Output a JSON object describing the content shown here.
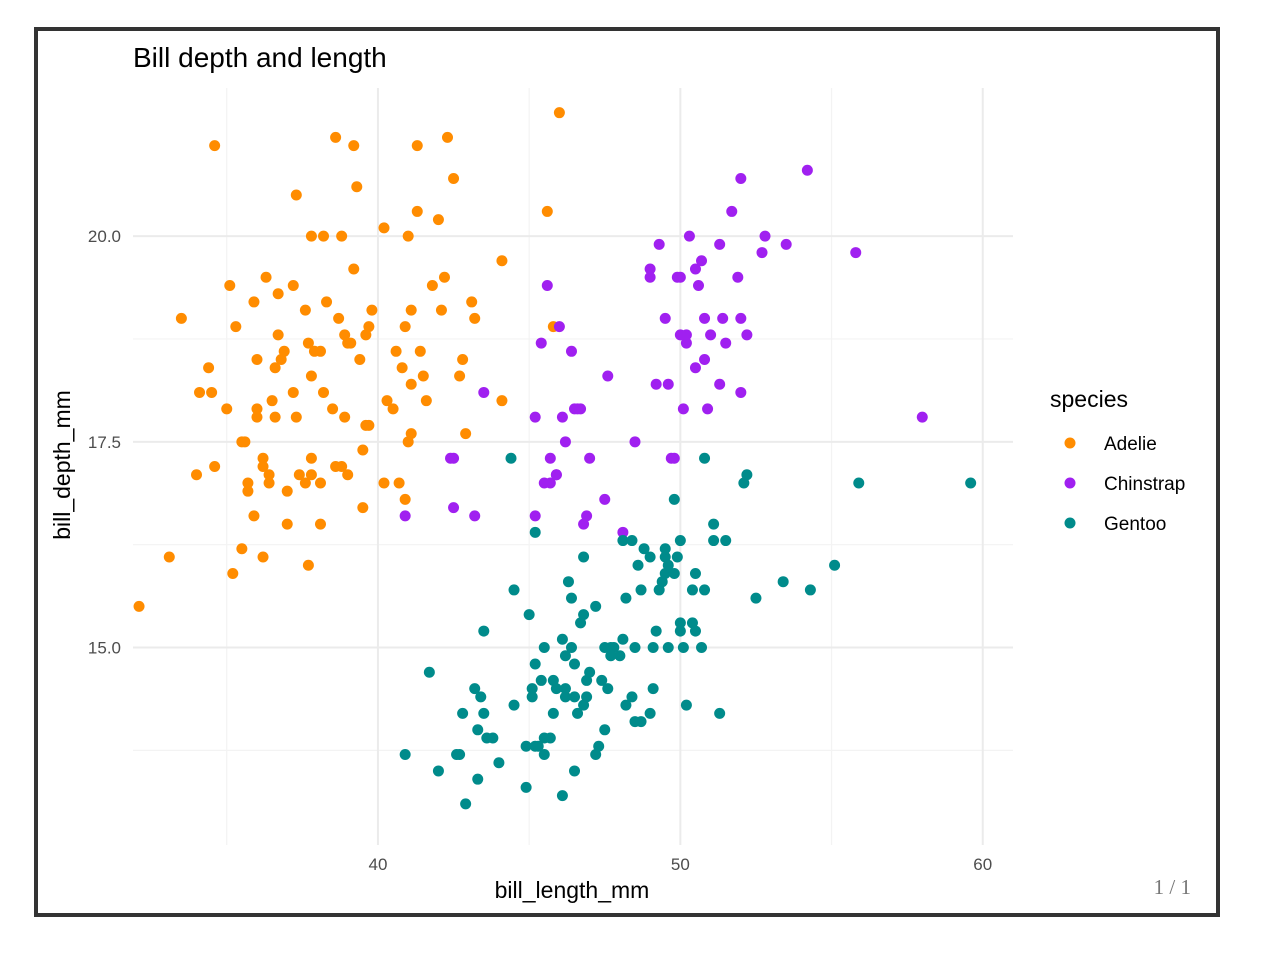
{
  "page_indicator": "1 / 1",
  "chart_data": {
    "type": "scatter",
    "title": "Bill depth and length",
    "xlabel": "bill_length_mm",
    "ylabel": "bill_depth_mm",
    "xlim": [
      31.9,
      61.0
    ],
    "ylim": [
      12.6,
      21.8
    ],
    "xticks": [
      40,
      50,
      60
    ],
    "xtick_labels": [
      "40",
      "50",
      "60"
    ],
    "yticks": [
      15.0,
      17.5,
      20.0
    ],
    "ytick_labels": [
      "15.0",
      "17.5",
      "20.0"
    ],
    "grid": true,
    "legend": {
      "title": "species",
      "position": "right"
    },
    "series": [
      {
        "name": "Adelie",
        "color": "#ff8c00",
        "points": [
          [
            32.1,
            15.5
          ],
          [
            33.1,
            16.1
          ],
          [
            33.5,
            19.0
          ],
          [
            34.0,
            17.1
          ],
          [
            34.1,
            18.1
          ],
          [
            34.4,
            18.4
          ],
          [
            34.5,
            18.1
          ],
          [
            34.6,
            21.1
          ],
          [
            34.6,
            17.2
          ],
          [
            35.0,
            17.9
          ],
          [
            35.1,
            19.4
          ],
          [
            35.2,
            15.9
          ],
          [
            35.3,
            18.9
          ],
          [
            35.5,
            16.2
          ],
          [
            35.5,
            17.5
          ],
          [
            35.6,
            17.5
          ],
          [
            35.7,
            16.9
          ],
          [
            35.7,
            17.0
          ],
          [
            35.9,
            19.2
          ],
          [
            35.9,
            16.6
          ],
          [
            36.0,
            17.9
          ],
          [
            36.0,
            17.8
          ],
          [
            36.0,
            18.5
          ],
          [
            36.2,
            16.1
          ],
          [
            36.2,
            17.3
          ],
          [
            36.2,
            17.2
          ],
          [
            36.3,
            19.5
          ],
          [
            36.4,
            17.0
          ],
          [
            36.4,
            17.1
          ],
          [
            36.5,
            18.0
          ],
          [
            36.6,
            17.8
          ],
          [
            36.6,
            18.4
          ],
          [
            36.7,
            19.3
          ],
          [
            36.7,
            18.8
          ],
          [
            36.8,
            18.5
          ],
          [
            36.9,
            18.6
          ],
          [
            37.0,
            16.5
          ],
          [
            37.0,
            16.9
          ],
          [
            37.2,
            18.1
          ],
          [
            37.2,
            19.4
          ],
          [
            37.3,
            17.8
          ],
          [
            37.3,
            20.5
          ],
          [
            37.6,
            17.0
          ],
          [
            37.6,
            19.1
          ],
          [
            37.7,
            18.7
          ],
          [
            37.8,
            17.1
          ],
          [
            37.8,
            17.3
          ],
          [
            37.8,
            18.3
          ],
          [
            37.8,
            20.0
          ],
          [
            37.7,
            16.0
          ],
          [
            37.9,
            18.6
          ],
          [
            38.1,
            18.6
          ],
          [
            38.1,
            17.0
          ],
          [
            38.1,
            16.5
          ],
          [
            38.2,
            18.1
          ],
          [
            38.2,
            20.0
          ],
          [
            38.5,
            17.9
          ],
          [
            38.6,
            21.2
          ],
          [
            38.6,
            17.2
          ],
          [
            38.7,
            19.0
          ],
          [
            38.8,
            17.2
          ],
          [
            38.8,
            20.0
          ],
          [
            38.9,
            17.8
          ],
          [
            38.9,
            18.8
          ],
          [
            39.0,
            17.1
          ],
          [
            39.0,
            18.7
          ],
          [
            39.1,
            18.7
          ],
          [
            39.2,
            19.6
          ],
          [
            39.2,
            21.1
          ],
          [
            39.3,
            20.6
          ],
          [
            39.5,
            17.4
          ],
          [
            39.5,
            16.7
          ],
          [
            39.6,
            17.7
          ],
          [
            39.6,
            18.8
          ],
          [
            39.7,
            17.7
          ],
          [
            39.7,
            18.9
          ],
          [
            39.8,
            19.1
          ],
          [
            40.2,
            20.1
          ],
          [
            40.2,
            17.0
          ],
          [
            40.3,
            18.0
          ],
          [
            40.5,
            17.9
          ],
          [
            40.6,
            18.6
          ],
          [
            40.8,
            18.4
          ],
          [
            40.9,
            18.9
          ],
          [
            40.9,
            16.8
          ],
          [
            41.0,
            20.0
          ],
          [
            41.1,
            17.6
          ],
          [
            41.1,
            18.2
          ],
          [
            41.1,
            19.1
          ],
          [
            41.3,
            20.3
          ],
          [
            41.3,
            21.1
          ],
          [
            41.4,
            18.6
          ],
          [
            41.5,
            18.3
          ],
          [
            41.6,
            18.0
          ],
          [
            41.8,
            19.4
          ],
          [
            42.0,
            20.2
          ],
          [
            42.1,
            19.1
          ],
          [
            42.2,
            19.5
          ],
          [
            42.3,
            21.2
          ],
          [
            42.5,
            20.7
          ],
          [
            42.7,
            18.3
          ],
          [
            42.8,
            18.5
          ],
          [
            42.9,
            17.6
          ],
          [
            43.2,
            19.0
          ],
          [
            43.1,
            19.2
          ],
          [
            44.1,
            19.7
          ],
          [
            44.1,
            18.0
          ],
          [
            45.6,
            20.3
          ],
          [
            45.8,
            18.9
          ],
          [
            46.0,
            21.5
          ],
          [
            40.7,
            17.0
          ],
          [
            41.0,
            17.5
          ],
          [
            38.3,
            19.2
          ],
          [
            39.4,
            18.5
          ],
          [
            37.4,
            17.1
          ]
        ]
      },
      {
        "name": "Chinstrap",
        "color": "#a020f0",
        "points": [
          [
            40.9,
            16.6
          ],
          [
            42.4,
            17.3
          ],
          [
            42.5,
            16.7
          ],
          [
            42.5,
            17.3
          ],
          [
            43.2,
            16.6
          ],
          [
            43.5,
            18.1
          ],
          [
            45.2,
            17.8
          ],
          [
            45.2,
            16.6
          ],
          [
            45.4,
            18.7
          ],
          [
            45.5,
            17.0
          ],
          [
            45.6,
            19.4
          ],
          [
            45.7,
            17.3
          ],
          [
            45.7,
            17.0
          ],
          [
            45.9,
            17.1
          ],
          [
            46.0,
            18.9
          ],
          [
            46.1,
            17.8
          ],
          [
            46.4,
            18.6
          ],
          [
            46.5,
            17.9
          ],
          [
            46.6,
            17.9
          ],
          [
            46.7,
            17.9
          ],
          [
            46.8,
            16.5
          ],
          [
            46.9,
            16.6
          ],
          [
            47.0,
            17.3
          ],
          [
            47.5,
            16.8
          ],
          [
            47.6,
            18.3
          ],
          [
            48.1,
            16.4
          ],
          [
            48.5,
            17.5
          ],
          [
            49.0,
            19.6
          ],
          [
            49.0,
            19.5
          ],
          [
            49.2,
            18.2
          ],
          [
            49.3,
            19.9
          ],
          [
            49.5,
            19.0
          ],
          [
            49.6,
            18.2
          ],
          [
            49.7,
            17.3
          ],
          [
            49.8,
            17.3
          ],
          [
            49.9,
            19.5
          ],
          [
            50.0,
            19.5
          ],
          [
            50.1,
            17.9
          ],
          [
            50.2,
            18.7
          ],
          [
            50.3,
            20.0
          ],
          [
            50.5,
            18.4
          ],
          [
            50.5,
            19.6
          ],
          [
            50.6,
            19.4
          ],
          [
            50.7,
            19.7
          ],
          [
            50.8,
            18.5
          ],
          [
            50.8,
            19.0
          ],
          [
            50.9,
            17.9
          ],
          [
            51.0,
            18.8
          ],
          [
            51.3,
            18.2
          ],
          [
            51.3,
            19.9
          ],
          [
            51.4,
            19.0
          ],
          [
            51.5,
            18.7
          ],
          [
            51.7,
            20.3
          ],
          [
            51.9,
            19.5
          ],
          [
            52.0,
            18.1
          ],
          [
            52.0,
            19.0
          ],
          [
            52.0,
            20.7
          ],
          [
            52.2,
            18.8
          ],
          [
            52.7,
            19.8
          ],
          [
            52.8,
            20.0
          ],
          [
            53.5,
            19.9
          ],
          [
            54.2,
            20.8
          ],
          [
            55.8,
            19.8
          ],
          [
            58.0,
            17.8
          ],
          [
            50.2,
            18.8
          ],
          [
            50.0,
            18.8
          ],
          [
            46.2,
            17.5
          ],
          [
            45.9,
            17.1
          ]
        ]
      },
      {
        "name": "Gentoo",
        "color": "#008b8b",
        "points": [
          [
            40.9,
            13.7
          ],
          [
            41.7,
            14.7
          ],
          [
            42.0,
            13.5
          ],
          [
            42.6,
            13.7
          ],
          [
            42.7,
            13.7
          ],
          [
            42.8,
            14.2
          ],
          [
            42.9,
            13.1
          ],
          [
            43.2,
            14.5
          ],
          [
            43.3,
            13.4
          ],
          [
            43.3,
            14.0
          ],
          [
            43.4,
            14.4
          ],
          [
            43.5,
            14.2
          ],
          [
            43.5,
            15.2
          ],
          [
            43.6,
            13.9
          ],
          [
            43.8,
            13.9
          ],
          [
            44.0,
            13.6
          ],
          [
            44.4,
            17.3
          ],
          [
            44.5,
            14.3
          ],
          [
            44.5,
            15.7
          ],
          [
            44.9,
            13.3
          ],
          [
            44.9,
            13.8
          ],
          [
            45.0,
            15.4
          ],
          [
            45.1,
            14.5
          ],
          [
            45.1,
            14.4
          ],
          [
            45.2,
            14.8
          ],
          [
            45.2,
            13.8
          ],
          [
            45.2,
            16.4
          ],
          [
            45.3,
            13.8
          ],
          [
            45.4,
            14.6
          ],
          [
            45.5,
            13.7
          ],
          [
            45.5,
            15.0
          ],
          [
            45.5,
            13.9
          ],
          [
            45.7,
            13.9
          ],
          [
            45.8,
            14.6
          ],
          [
            45.8,
            14.2
          ],
          [
            46.1,
            13.2
          ],
          [
            46.1,
            15.1
          ],
          [
            46.2,
            14.4
          ],
          [
            46.2,
            14.5
          ],
          [
            46.2,
            14.9
          ],
          [
            46.3,
            15.8
          ],
          [
            46.4,
            15.0
          ],
          [
            46.4,
            15.6
          ],
          [
            46.5,
            13.5
          ],
          [
            46.5,
            14.4
          ],
          [
            46.5,
            14.8
          ],
          [
            46.6,
            14.2
          ],
          [
            46.7,
            15.3
          ],
          [
            46.8,
            14.3
          ],
          [
            46.8,
            15.4
          ],
          [
            46.8,
            16.1
          ],
          [
            46.9,
            14.6
          ],
          [
            47.2,
            13.7
          ],
          [
            47.2,
            15.5
          ],
          [
            47.3,
            13.8
          ],
          [
            47.4,
            14.6
          ],
          [
            47.5,
            14.0
          ],
          [
            47.5,
            15.0
          ],
          [
            47.6,
            14.5
          ],
          [
            47.7,
            15.0
          ],
          [
            47.8,
            15.0
          ],
          [
            48.1,
            15.1
          ],
          [
            48.1,
            16.3
          ],
          [
            48.2,
            14.3
          ],
          [
            48.2,
            15.6
          ],
          [
            48.4,
            14.4
          ],
          [
            48.4,
            16.3
          ],
          [
            48.5,
            14.1
          ],
          [
            48.5,
            15.0
          ],
          [
            48.6,
            16.0
          ],
          [
            48.7,
            14.1
          ],
          [
            48.7,
            15.7
          ],
          [
            48.8,
            16.2
          ],
          [
            49.0,
            16.1
          ],
          [
            49.1,
            14.5
          ],
          [
            49.1,
            15.0
          ],
          [
            49.2,
            15.2
          ],
          [
            49.3,
            15.7
          ],
          [
            49.4,
            15.8
          ],
          [
            49.5,
            15.9
          ],
          [
            49.5,
            16.1
          ],
          [
            49.5,
            16.2
          ],
          [
            49.6,
            15.0
          ],
          [
            49.6,
            16.0
          ],
          [
            49.8,
            15.9
          ],
          [
            49.8,
            16.8
          ],
          [
            49.9,
            16.1
          ],
          [
            50.0,
            15.2
          ],
          [
            50.0,
            15.3
          ],
          [
            50.0,
            16.3
          ],
          [
            50.1,
            15.0
          ],
          [
            50.2,
            14.3
          ],
          [
            50.4,
            15.3
          ],
          [
            50.4,
            15.7
          ],
          [
            50.5,
            15.2
          ],
          [
            50.5,
            15.9
          ],
          [
            50.7,
            15.0
          ],
          [
            50.8,
            15.7
          ],
          [
            50.8,
            17.3
          ],
          [
            51.1,
            16.3
          ],
          [
            51.1,
            16.5
          ],
          [
            51.3,
            14.2
          ],
          [
            51.5,
            16.3
          ],
          [
            52.1,
            17.0
          ],
          [
            52.2,
            17.1
          ],
          [
            52.5,
            15.6
          ],
          [
            53.4,
            15.8
          ],
          [
            54.3,
            15.7
          ],
          [
            55.1,
            16.0
          ],
          [
            55.9,
            17.0
          ],
          [
            59.6,
            17.0
          ],
          [
            47.0,
            14.7
          ],
          [
            48.0,
            14.9
          ],
          [
            46.9,
            14.4
          ],
          [
            45.9,
            14.5
          ],
          [
            49.0,
            14.2
          ],
          [
            47.7,
            14.9
          ]
        ]
      }
    ]
  }
}
